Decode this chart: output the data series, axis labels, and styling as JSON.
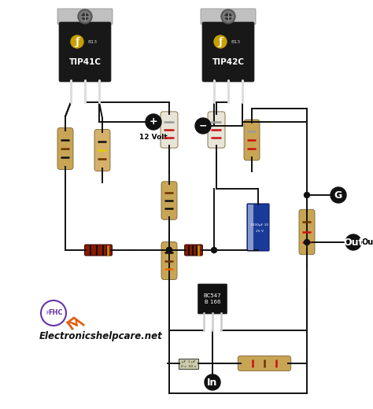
{
  "bg_color": "#ffffff",
  "transistor1_label": "TIP41C",
  "transistor2_label": "TIP42C",
  "transistor3_label": "BC547",
  "transistor3_sub": "B 166",
  "volt_label": "12 Volt",
  "G_label": "G",
  "Out_label": "Out",
  "In_label": "In",
  "cap_label1": "1000μF  10",
  "cap_label2": "25 V",
  "small_cap_label1": "μF   1 μF",
  "small_cap_label2": "0 v   50 v",
  "website": "Electronicshelpcare.net",
  "wire_color": "#111111",
  "node_color": "#111111",
  "transistor_black": "#181818",
  "transistor_tab": "#b0b0b0",
  "transistor_screw": "#444444",
  "fairchild_gold": "#c8a000",
  "resistor_tan": "#c8a555",
  "resistor_tan2": "#d4b06a",
  "resistor_white_body": "#e8e4d8",
  "diode_body": "#cc3300",
  "diode_dark": "#220000",
  "cap_blue": "#1a3a99",
  "cap_stripe": "#8899cc",
  "logo_orange": "#e06010",
  "logo_purple": "#6633aa",
  "band_black": "#111111",
  "band_brown": "#6b3300",
  "band_red": "#cc1111",
  "band_orange": "#ee6600",
  "band_yellow": "#ddcc00",
  "band_gray": "#999999",
  "band_gold": "#ccaa00"
}
